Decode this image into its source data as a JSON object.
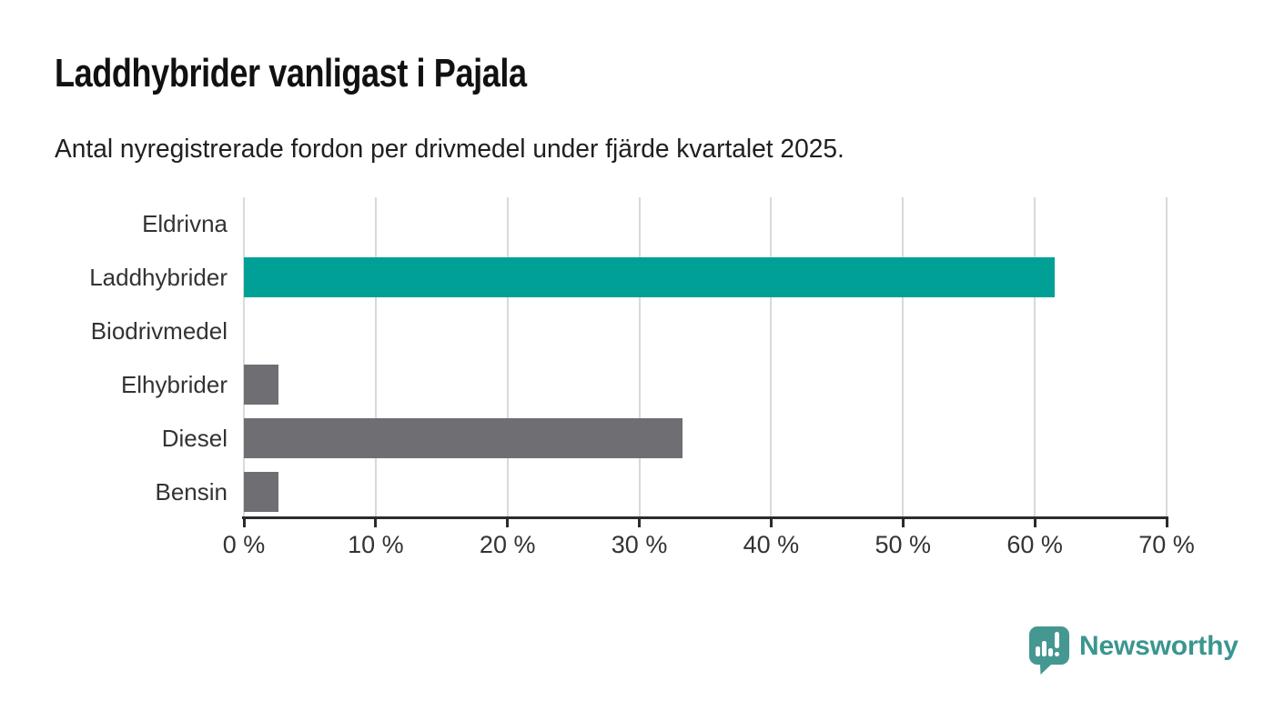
{
  "page": {
    "background": "#ffffff"
  },
  "chart_data": {
    "type": "bar",
    "orientation": "horizontal",
    "title": "Laddhybrider vanligast i Pajala",
    "subtitle": "Antal nyregistrerade fordon per drivmedel under fjärde kvartalet 2025.",
    "categories": [
      "Eldrivna",
      "Laddhybrider",
      "Biodrivmedel",
      "Elhybrider",
      "Diesel",
      "Bensin"
    ],
    "values": [
      0,
      61.5,
      0,
      2.6,
      33.3,
      2.6
    ],
    "unit": "%",
    "xlim": [
      0,
      70
    ],
    "x_ticks": [
      0,
      10,
      20,
      30,
      40,
      50,
      60,
      70
    ],
    "x_tick_labels": [
      "0 %",
      "10 %",
      "20 %",
      "30 %",
      "40 %",
      "50 %",
      "60 %",
      "70 %"
    ],
    "grid": "vertical",
    "legend": "none",
    "highlight_category": "Laddhybrider",
    "colors": {
      "highlight_bar": "#00a096",
      "default_bar": "#6e6e73",
      "gridline": "#d9d9d9",
      "axis": "#2b2b2b",
      "label_text": "#333333",
      "title_text": "#111111",
      "subtitle_text": "#1f1f1f"
    }
  },
  "footer": {
    "brand": "Newsworthy",
    "brand_text_color": "#3a968f",
    "brand_icon_color": "#459792",
    "brand_icon": "speech-bubble-bar-chart-exclamation"
  }
}
